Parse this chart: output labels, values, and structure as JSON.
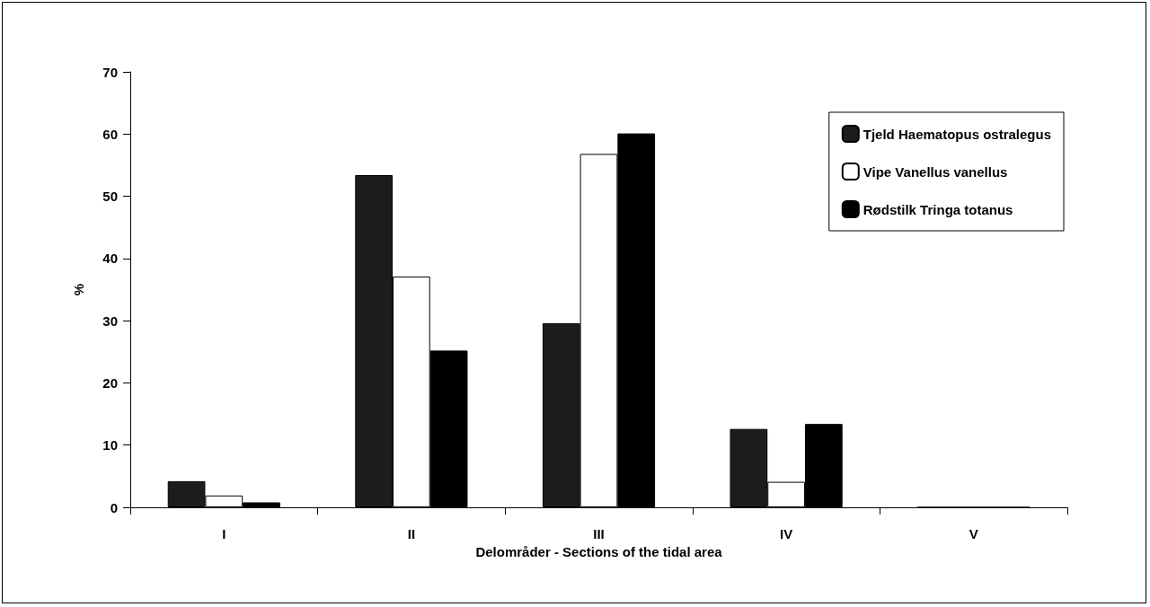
{
  "chart_data": {
    "type": "bar",
    "xlabel": "Delområder - Sections of the tidal area",
    "ylabel": "%",
    "categories": [
      "I",
      "II",
      "III",
      "IV",
      "V"
    ],
    "series": [
      {
        "name": "Tjeld Haematopus ostralegus",
        "color": "#1c1c1c",
        "values": [
          4.2,
          53.4,
          29.6,
          12.6,
          0
        ]
      },
      {
        "name": "Vipe Vanellus vanellus",
        "color": "#ffffff",
        "values": [
          1.9,
          37.1,
          56.8,
          4.1,
          0
        ]
      },
      {
        "name": "Rødstilk Tringa totanus",
        "color": "#000000",
        "values": [
          0.8,
          25.2,
          60.1,
          13.4,
          0
        ]
      }
    ],
    "ylim": [
      0,
      70
    ],
    "yticks": [
      0,
      10,
      20,
      30,
      40,
      50,
      60,
      70
    ],
    "grid": false,
    "legend": "top right"
  }
}
